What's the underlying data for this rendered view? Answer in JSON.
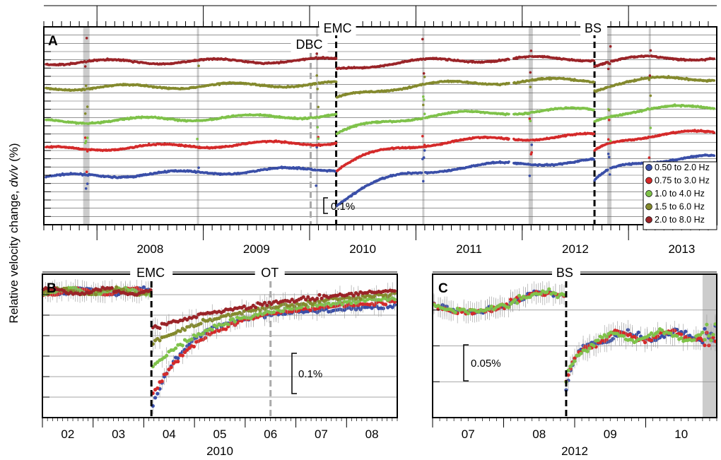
{
  "ylabel": "Relative velocity change, dv/v (%)",
  "ylabel_parts": [
    "Relative velocity change, ",
    "dv/v",
    " (%)"
  ],
  "colors": {
    "b1": "#3a4fa8",
    "b2": "#d42a2a",
    "b3": "#7fc24a",
    "b4": "#848a2e",
    "b5": "#9a2428",
    "shade": "#cccccc",
    "event": "#000000",
    "secondary_event": "#aaaaaa"
  },
  "chart_data": [
    {
      "panel": "A",
      "type": "scatter",
      "x_unit": "year",
      "xlim": [
        2007.5,
        2013.83
      ],
      "ylim": [
        0,
        1
      ],
      "y_ticks_labeled": false,
      "grid": true,
      "x_tick_labels": [
        "2008",
        "2009",
        "2010",
        "2011",
        "2012",
        "2013"
      ],
      "x_tick_values": [
        2008,
        2009,
        2010,
        2011,
        2012,
        2013
      ],
      "events": [
        {
          "label": "EMC",
          "x": 2010.25,
          "style": "dashed-black"
        },
        {
          "label": "BS",
          "x": 2012.68,
          "style": "dashed-black"
        },
        {
          "label": "DBC",
          "x": 2010.01,
          "style": "dashed-gray"
        }
      ],
      "shaded_periods": [
        [
          2007.87,
          2007.93
        ],
        [
          2008.94,
          2008.96
        ],
        [
          2010.06,
          2010.08
        ],
        [
          2011.06,
          2011.08
        ],
        [
          2012.06,
          2012.1
        ],
        [
          2012.8,
          2012.84
        ],
        [
          2013.19,
          2013.21
        ]
      ],
      "scale_bar": {
        "label": "0.1%",
        "value": 0.1
      },
      "legend_position": "right",
      "series": [
        {
          "name": "0.50 to 2.0 Hz",
          "color_key": "b1",
          "offset": 0.24,
          "drop": 0.18,
          "drift": 0.2
        },
        {
          "name": "0.75 to 3.0 Hz",
          "color_key": "b2",
          "offset": 0.38,
          "drop": 0.14,
          "drift": 0.17
        },
        {
          "name": "1.0 to 4.0 Hz",
          "color_key": "b3",
          "offset": 0.52,
          "drop": 0.1,
          "drift": 0.15
        },
        {
          "name": "1.5 to 6.0 Hz",
          "color_key": "b4",
          "offset": 0.69,
          "drop": 0.08,
          "drift": 0.1
        },
        {
          "name": "2.0 to 8.0 Hz",
          "color_key": "b5",
          "offset": 0.82,
          "drop": 0.05,
          "drift": 0.05
        }
      ]
    },
    {
      "panel": "B",
      "type": "scatter",
      "x_unit": "month",
      "x_axis_title": "2010",
      "xlim": [
        1.5,
        8.5
      ],
      "ylim": [
        0,
        1
      ],
      "y_ticks_labeled": false,
      "x_tick_labels": [
        "02",
        "03",
        "04",
        "05",
        "06",
        "07",
        "08"
      ],
      "x_tick_values": [
        2,
        3,
        4,
        5,
        6,
        7,
        8
      ],
      "events": [
        {
          "label": "EMC",
          "x": 3.65,
          "style": "dashed-black"
        },
        {
          "label": "OT",
          "x": 6.0,
          "style": "dashed-gray"
        }
      ],
      "scale_bar": {
        "label": "0.1%",
        "value": 0.1
      },
      "pre_level": 0.88,
      "recovered_level": 0.85,
      "series": [
        {
          "name": "0.50 to 2.0 Hz",
          "color_key": "b1",
          "min": 0.06
        },
        {
          "name": "0.75 to 3.0 Hz",
          "color_key": "b2",
          "min": 0.14
        },
        {
          "name": "1.0 to 4.0 Hz",
          "color_key": "b3",
          "min": 0.34
        },
        {
          "name": "1.5 to 6.0 Hz",
          "color_key": "b4",
          "min": 0.52
        },
        {
          "name": "2.0 to 8.0 Hz",
          "color_key": "b5",
          "min": 0.62
        }
      ]
    },
    {
      "panel": "C",
      "type": "scatter",
      "x_unit": "month",
      "x_axis_title": "2012",
      "xlim": [
        6.5,
        10.5
      ],
      "ylim": [
        0,
        1
      ],
      "y_ticks_labeled": false,
      "x_tick_labels": [
        "07",
        "08",
        "09",
        "10"
      ],
      "x_tick_values": [
        7,
        8,
        9,
        10
      ],
      "events": [
        {
          "label": "BS",
          "x": 8.38,
          "style": "dashed-black"
        }
      ],
      "shaded_periods": [
        [
          10.3,
          10.5
        ]
      ],
      "scale_bar": {
        "label": "0.05%",
        "value": 0.05
      },
      "pre_level": 0.78,
      "post_level": 0.57,
      "series": [
        {
          "name": "0.50 to 2.0 Hz",
          "color_key": "b1",
          "min": 0.2
        },
        {
          "name": "0.75 to 3.0 Hz",
          "color_key": "b2",
          "min": 0.22
        },
        {
          "name": "1.0 to 4.0 Hz",
          "color_key": "b3",
          "min": 0.24
        }
      ]
    }
  ],
  "panel_labels": {
    "A": "A",
    "B": "B",
    "C": "C"
  }
}
